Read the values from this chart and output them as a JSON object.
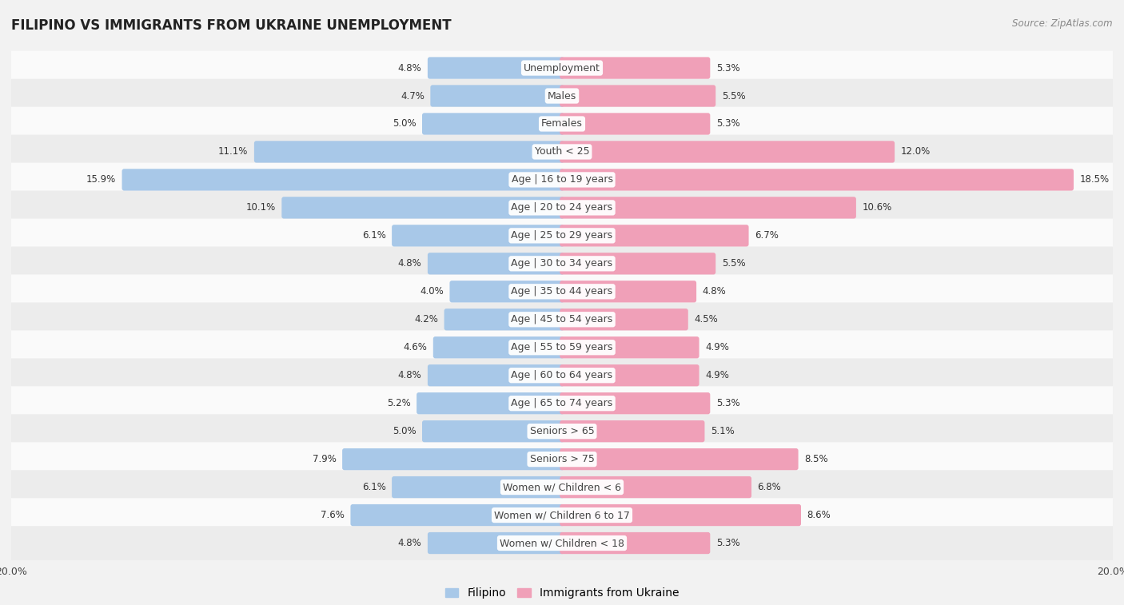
{
  "title": "FILIPINO VS IMMIGRANTS FROM UKRAINE UNEMPLOYMENT",
  "source": "Source: ZipAtlas.com",
  "categories": [
    "Unemployment",
    "Males",
    "Females",
    "Youth < 25",
    "Age | 16 to 19 years",
    "Age | 20 to 24 years",
    "Age | 25 to 29 years",
    "Age | 30 to 34 years",
    "Age | 35 to 44 years",
    "Age | 45 to 54 years",
    "Age | 55 to 59 years",
    "Age | 60 to 64 years",
    "Age | 65 to 74 years",
    "Seniors > 65",
    "Seniors > 75",
    "Women w/ Children < 6",
    "Women w/ Children 6 to 17",
    "Women w/ Children < 18"
  ],
  "filipino_values": [
    4.8,
    4.7,
    5.0,
    11.1,
    15.9,
    10.1,
    6.1,
    4.8,
    4.0,
    4.2,
    4.6,
    4.8,
    5.2,
    5.0,
    7.9,
    6.1,
    7.6,
    4.8
  ],
  "ukraine_values": [
    5.3,
    5.5,
    5.3,
    12.0,
    18.5,
    10.6,
    6.7,
    5.5,
    4.8,
    4.5,
    4.9,
    4.9,
    5.3,
    5.1,
    8.5,
    6.8,
    8.6,
    5.3
  ],
  "filipino_color": "#a8c8e8",
  "ukraine_color": "#f0a0b8",
  "background_color": "#f2f2f2",
  "row_color_light": "#fafafa",
  "row_color_dark": "#ececec",
  "axis_max": 20.0,
  "label_fontsize": 9.0,
  "title_fontsize": 12,
  "legend_fontsize": 10,
  "value_fontsize": 8.5
}
